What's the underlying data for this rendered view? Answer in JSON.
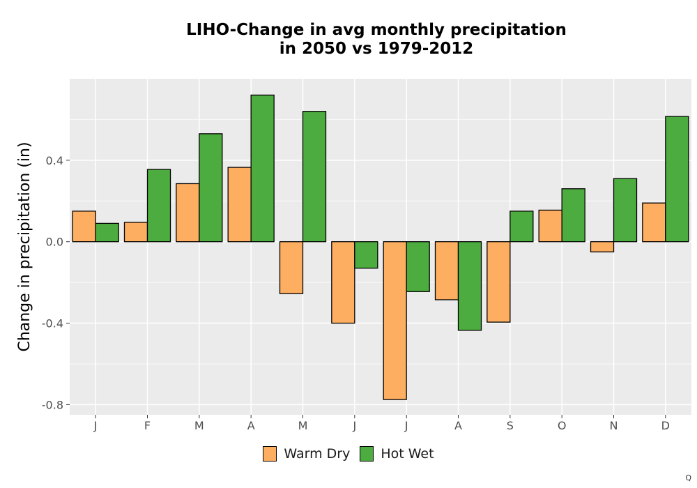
{
  "chart_data": {
    "type": "bar",
    "title_line1": "LIHO-Change in avg monthly precipitation",
    "title_line2": "in 2050 vs 1979-2012",
    "xlabel": "",
    "ylabel": "Change in precipitation (in)",
    "categories": [
      "J",
      "F",
      "M",
      "A",
      "M",
      "J",
      "J",
      "A",
      "S",
      "O",
      "N",
      "D"
    ],
    "series": [
      {
        "name": "Warm Dry",
        "color": "#FDAE61",
        "values": [
          0.15,
          0.095,
          0.285,
          0.365,
          -0.255,
          -0.4,
          -0.775,
          -0.285,
          -0.395,
          0.155,
          -0.05,
          0.19
        ]
      },
      {
        "name": "Hot Wet",
        "color": "#4DAC3F",
        "values": [
          0.09,
          0.355,
          0.53,
          0.72,
          0.64,
          -0.13,
          -0.245,
          -0.435,
          0.15,
          0.26,
          0.31,
          0.615
        ]
      }
    ],
    "ylim": [
      -0.85,
      0.8
    ],
    "yticks": [
      0.4,
      0.0,
      -0.4,
      -0.8
    ],
    "ytick_labels": [
      "0.4",
      "0.0",
      "-0.4",
      "-0.8"
    ],
    "grid": true,
    "legend_position": "bottom"
  },
  "corner_mark": "Q"
}
